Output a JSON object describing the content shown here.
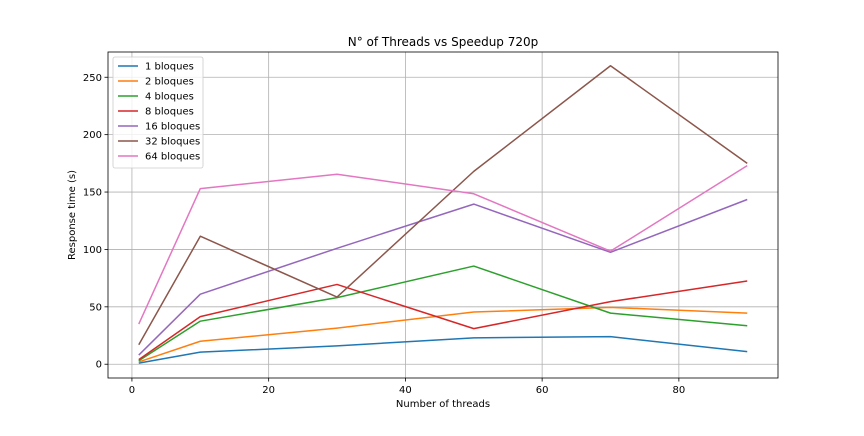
{
  "chart_data": {
    "type": "line",
    "title": "N° of Threads vs Speedup 720p",
    "xlabel": "Number of threads",
    "ylabel": "Response time (s)",
    "xlim": [
      -3.5,
      94.5
    ],
    "ylim": [
      -12,
      272
    ],
    "xticks": [
      0,
      20,
      40,
      60,
      80
    ],
    "yticks": [
      0,
      50,
      100,
      150,
      200,
      250
    ],
    "grid": true,
    "legend_position": "top-left",
    "x": [
      1,
      10,
      30,
      50,
      70,
      90
    ],
    "series": [
      {
        "name": "1 bloques",
        "color": "#1f77b4",
        "values": [
          1,
          10.5,
          16,
          23,
          24,
          11
        ]
      },
      {
        "name": "2 bloques",
        "color": "#ff7f0e",
        "values": [
          2,
          20,
          31.5,
          45.5,
          49.5,
          44.5
        ]
      },
      {
        "name": "4 bloques",
        "color": "#2ca02c",
        "values": [
          3,
          37.5,
          58,
          85.5,
          44.5,
          33.5
        ]
      },
      {
        "name": "8 bloques",
        "color": "#d62728",
        "values": [
          4,
          41.5,
          69.5,
          31,
          54.5,
          72.5
        ]
      },
      {
        "name": "16 bloques",
        "color": "#9467bd",
        "values": [
          8,
          61,
          101,
          139.5,
          97.5,
          143.5
        ]
      },
      {
        "name": "32 bloques",
        "color": "#8c564b",
        "values": [
          17,
          111.5,
          58.5,
          168,
          260,
          175
        ]
      },
      {
        "name": "64 bloques",
        "color": "#e377c2",
        "values": [
          35,
          153,
          165.5,
          148.5,
          98.5,
          173
        ]
      }
    ]
  }
}
